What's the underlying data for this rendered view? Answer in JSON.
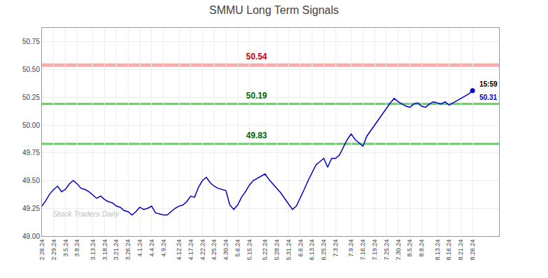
{
  "chart_data": {
    "type": "line",
    "title": "SMMU Long Term Signals",
    "watermark": "Stock Traders Daily",
    "categories": [
      "2.26.24",
      null,
      null,
      "2.29.24",
      null,
      null,
      "3.5.24",
      null,
      null,
      "3.8.24",
      null,
      null,
      null,
      "3.13.24",
      null,
      null,
      "3.18.24",
      null,
      null,
      "3.21.24",
      null,
      null,
      "3.26.24",
      null,
      null,
      "4.1.24",
      null,
      null,
      "4.4.24",
      null,
      null,
      "4.9.24",
      null,
      null,
      null,
      "4.12.24",
      null,
      null,
      "4.17.24",
      null,
      null,
      "4.22.24",
      null,
      null,
      "4.25.24",
      null,
      null,
      "4.30.24",
      null,
      null,
      "5.6.24",
      null,
      null,
      "5.15.24",
      null,
      null,
      null,
      "5.22.24",
      null,
      null,
      "5.28.24",
      null,
      null,
      "5.31.24",
      null,
      null,
      "6.6.24",
      null,
      null,
      "6.13.24",
      null,
      null,
      "6.25.24",
      null,
      null,
      "7.3.24",
      null,
      null,
      null,
      "7.9.24",
      null,
      null,
      "7.16.24",
      null,
      null,
      "7.19.24",
      null,
      null,
      "7.25.24",
      null,
      null,
      "7.30.24",
      null,
      null,
      "8.5.24",
      null,
      null,
      "8.8.24",
      null,
      null,
      null,
      "8.13.24",
      null,
      null,
      "8.16.24",
      null,
      null,
      "8.21.24",
      null,
      null,
      "8.26.24"
    ],
    "values": [
      49.27,
      49.32,
      49.38,
      49.42,
      49.45,
      49.4,
      49.42,
      49.47,
      49.5,
      49.47,
      49.43,
      49.42,
      49.4,
      49.37,
      49.34,
      49.36,
      49.33,
      49.31,
      49.3,
      49.27,
      49.26,
      49.23,
      49.22,
      49.19,
      49.22,
      49.26,
      49.24,
      49.25,
      49.27,
      49.21,
      49.2,
      49.19,
      49.19,
      49.22,
      49.25,
      49.27,
      49.28,
      49.31,
      49.36,
      49.35,
      49.44,
      49.5,
      49.53,
      49.48,
      49.45,
      49.43,
      49.42,
      49.41,
      49.28,
      49.24,
      49.28,
      49.35,
      49.4,
      49.46,
      49.5,
      49.52,
      49.54,
      49.56,
      49.51,
      49.47,
      49.43,
      49.39,
      49.34,
      49.29,
      49.24,
      49.27,
      49.34,
      49.42,
      49.5,
      49.57,
      49.64,
      49.67,
      49.7,
      49.62,
      49.7,
      49.7,
      49.73,
      49.8,
      49.87,
      49.92,
      49.87,
      49.84,
      49.81,
      49.9,
      49.95,
      50.0,
      50.05,
      50.1,
      50.15,
      50.2,
      50.24,
      50.21,
      50.19,
      50.17,
      50.16,
      50.19,
      50.2,
      50.17,
      50.16,
      50.19,
      50.21,
      50.2,
      50.19,
      50.21,
      50.18,
      50.2,
      50.22,
      50.24,
      50.26,
      50.28,
      50.31
    ],
    "color": "#0000cc",
    "annotations": [
      {
        "text": "50.54",
        "y": 50.54,
        "color": "#cc0000",
        "line_color": "#ffaaaa"
      },
      {
        "text": "50.19",
        "y": 50.19,
        "color": "#006600",
        "line_color": "#66cc66"
      },
      {
        "text": "49.83",
        "y": 49.83,
        "color": "#006600",
        "line_color": "#66cc66"
      }
    ],
    "last_point": {
      "time": "15:59",
      "value": 50.31
    },
    "ylim": [
      49.0,
      50.875
    ],
    "yticks": [
      {
        "value": 49.0,
        "label": "49.00"
      },
      {
        "value": 49.25,
        "label": "49.25"
      },
      {
        "value": 49.5,
        "label": "49.50"
      },
      {
        "value": 49.75,
        "label": "49.75"
      },
      {
        "value": 50.0,
        "label": "50.00"
      },
      {
        "value": 50.25,
        "label": "50.25"
      },
      {
        "value": 50.5,
        "label": "50.50"
      },
      {
        "value": 50.75,
        "label": "50.75"
      }
    ],
    "grid": true
  }
}
